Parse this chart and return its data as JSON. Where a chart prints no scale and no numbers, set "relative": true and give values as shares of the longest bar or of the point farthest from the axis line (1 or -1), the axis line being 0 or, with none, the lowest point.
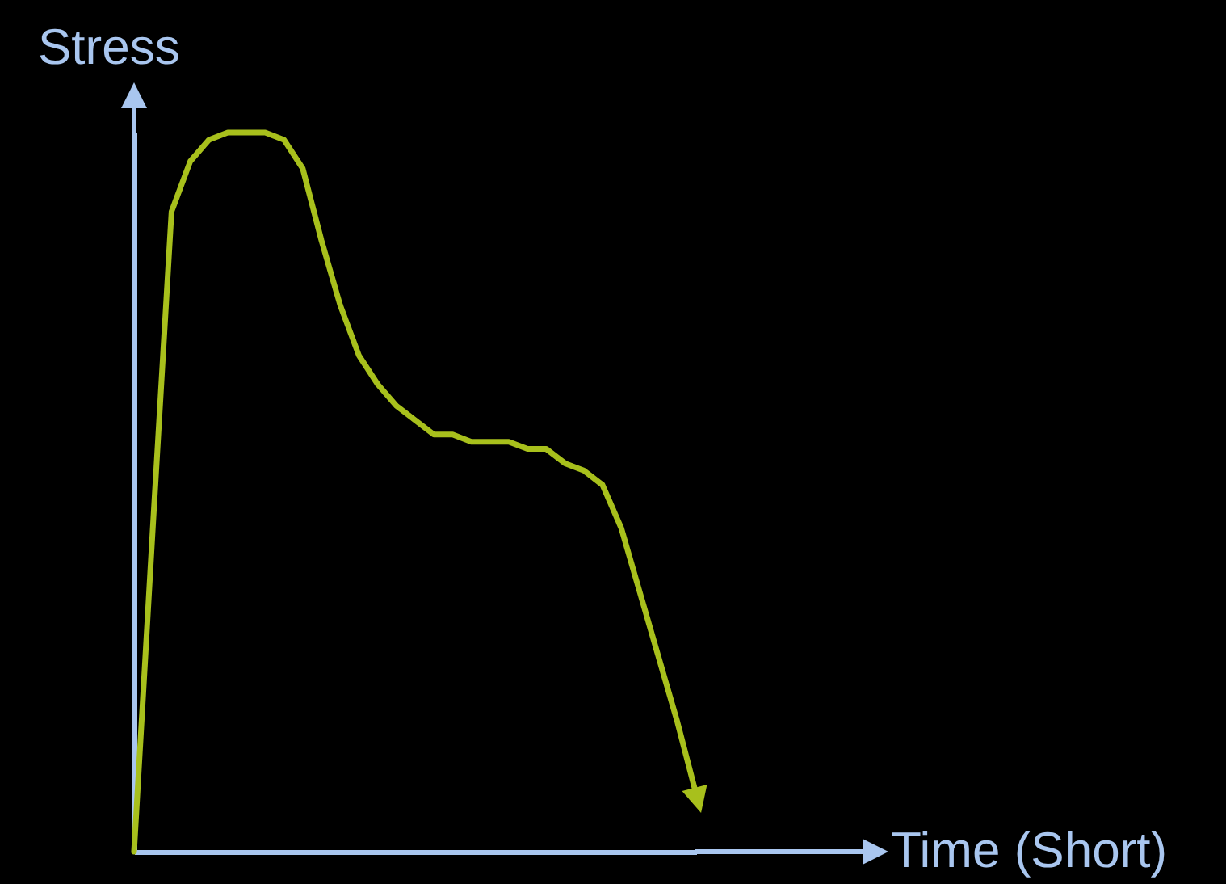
{
  "chart_data": {
    "type": "line",
    "relative": true,
    "xlabel": "Time (Short)",
    "ylabel": "Stress",
    "grid": false,
    "categories": [
      null,
      null,
      null,
      null,
      null,
      null,
      null,
      null,
      null,
      null,
      null,
      null,
      null,
      null,
      null,
      null,
      null,
      null,
      null,
      null,
      null,
      null,
      null,
      null,
      null,
      null,
      null,
      null,
      null,
      null,
      null
    ],
    "series": [
      {
        "color": "#a8c01c",
        "values": [
          0,
          0.45,
          0.89,
          0.96,
          0.99,
          1.0,
          1.0,
          1.0,
          0.99,
          0.95,
          0.85,
          0.76,
          0.69,
          0.65,
          0.62,
          0.6,
          0.58,
          0.58,
          0.57,
          0.57,
          0.57,
          0.56,
          0.56,
          0.54,
          0.53,
          0.51,
          0.45,
          0.36,
          0.27,
          0.18,
          0.08
        ]
      }
    ]
  }
}
